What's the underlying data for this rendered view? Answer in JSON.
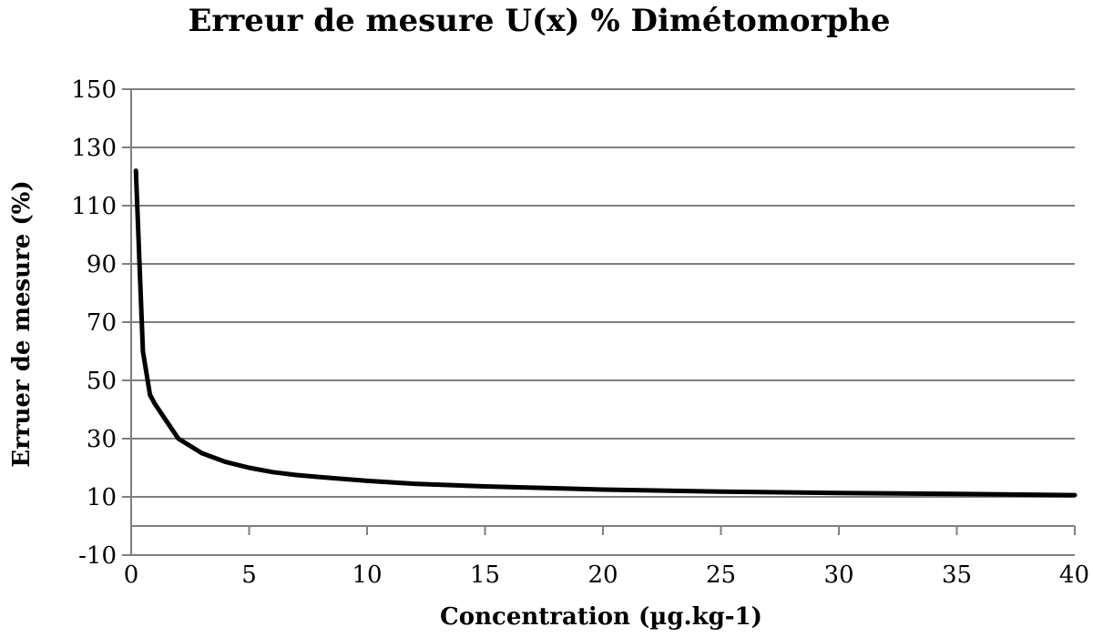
{
  "chart_data": {
    "type": "line",
    "title": "Erreur de mesure U(x) % Dimétomorphe",
    "xlabel": "Concentration (µg.kg-1)",
    "ylabel": "Erruer de mesure (%)",
    "xlim": [
      0,
      40
    ],
    "ylim": [
      -10,
      150
    ],
    "xticks": [
      "0",
      "5",
      "10",
      "15",
      "20",
      "25",
      "30",
      "35",
      "40"
    ],
    "yticks": [
      "-10",
      "10",
      "30",
      "50",
      "70",
      "90",
      "110",
      "130",
      "150"
    ],
    "grid": "horizontal",
    "line_color": "#000000",
    "grid_color": "#7f7f7f",
    "series": [
      {
        "x": [
          0.2,
          0.5,
          0.8,
          1,
          1.5,
          2,
          3,
          4,
          5,
          6,
          7,
          8,
          10,
          12,
          15,
          20,
          25,
          30,
          35,
          40
        ],
        "y": [
          122,
          60,
          45,
          42,
          36,
          30,
          25,
          22,
          20,
          18.5,
          17.5,
          16.8,
          15.5,
          14.5,
          13.6,
          12.5,
          11.8,
          11.3,
          11,
          10.6
        ]
      }
    ]
  }
}
